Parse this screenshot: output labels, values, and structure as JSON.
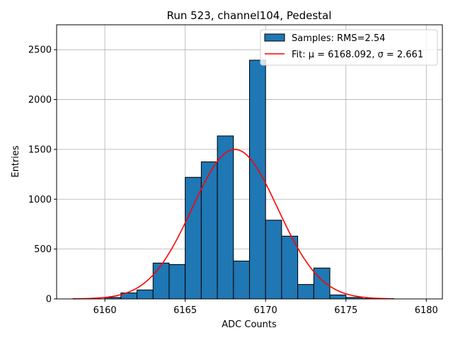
{
  "chart_data": {
    "type": "bar",
    "title": "Run 523, channel104, Pedestal",
    "xlabel": "ADC Counts",
    "ylabel": "Entries",
    "xlim": [
      6157,
      6181
    ],
    "ylim": [
      0,
      2750
    ],
    "xticks": [
      6160,
      6165,
      6170,
      6175,
      6180
    ],
    "yticks": [
      0,
      500,
      1000,
      1500,
      2000,
      2500
    ],
    "grid": true,
    "legend_position": "top-right",
    "bin_width": 1,
    "bins": [
      {
        "x0": 6160,
        "count": 15
      },
      {
        "x0": 6161,
        "count": 60
      },
      {
        "x0": 6162,
        "count": 90
      },
      {
        "x0": 6163,
        "count": 360
      },
      {
        "x0": 6164,
        "count": 345
      },
      {
        "x0": 6165,
        "count": 1220
      },
      {
        "x0": 6166,
        "count": 1375
      },
      {
        "x0": 6167,
        "count": 1635
      },
      {
        "x0": 6168,
        "count": 380
      },
      {
        "x0": 6169,
        "count": 2395
      },
      {
        "x0": 6170,
        "count": 790
      },
      {
        "x0": 6171,
        "count": 630
      },
      {
        "x0": 6172,
        "count": 145
      },
      {
        "x0": 6173,
        "count": 310
      },
      {
        "x0": 6174,
        "count": 40
      },
      {
        "x0": 6175,
        "count": 15
      },
      {
        "x0": 6176,
        "count": 3
      }
    ],
    "fit": {
      "mu": 6168.092,
      "sigma": 2.661,
      "amplitude": 1500,
      "x_range": [
        6158,
        6178
      ]
    },
    "series": [
      {
        "name": "Samples: RMS=2.54",
        "kind": "histogram",
        "color": "#1f77b4"
      },
      {
        "name": "Fit: μ = 6168.092, σ = 2.661",
        "kind": "line",
        "color": "#ff0000"
      }
    ]
  }
}
